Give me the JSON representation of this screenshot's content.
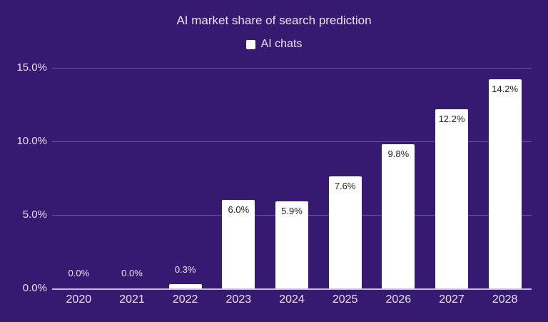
{
  "chart_data": {
    "type": "bar",
    "title": "AI market share of search prediction",
    "xlabel": "",
    "ylabel": "",
    "legend": {
      "position": "top",
      "entries": [
        "AI chats"
      ]
    },
    "categories": [
      "2020",
      "2021",
      "2022",
      "2023",
      "2024",
      "2025",
      "2026",
      "2027",
      "2028"
    ],
    "series": [
      {
        "name": "AI chats",
        "values": [
          0.0,
          0.0,
          0.3,
          6.0,
          5.9,
          7.6,
          9.8,
          12.2,
          14.2
        ],
        "color": "#ffffff"
      }
    ],
    "data_labels": [
      "0.0%",
      "0.0%",
      "0.3%",
      "6.0%",
      "5.9%",
      "7.6%",
      "9.8%",
      "12.2%",
      "14.2%"
    ],
    "ylim": [
      0,
      15
    ],
    "yticks": [
      0,
      5,
      10,
      15
    ],
    "ytick_labels": [
      "0.0%",
      "5.0%",
      "10.0%",
      "15.0%"
    ],
    "grid": true
  },
  "colors": {
    "background": "#361a72",
    "bar": "#ffffff",
    "gridline": "#6a53a3",
    "text": "#e6e1f2"
  }
}
